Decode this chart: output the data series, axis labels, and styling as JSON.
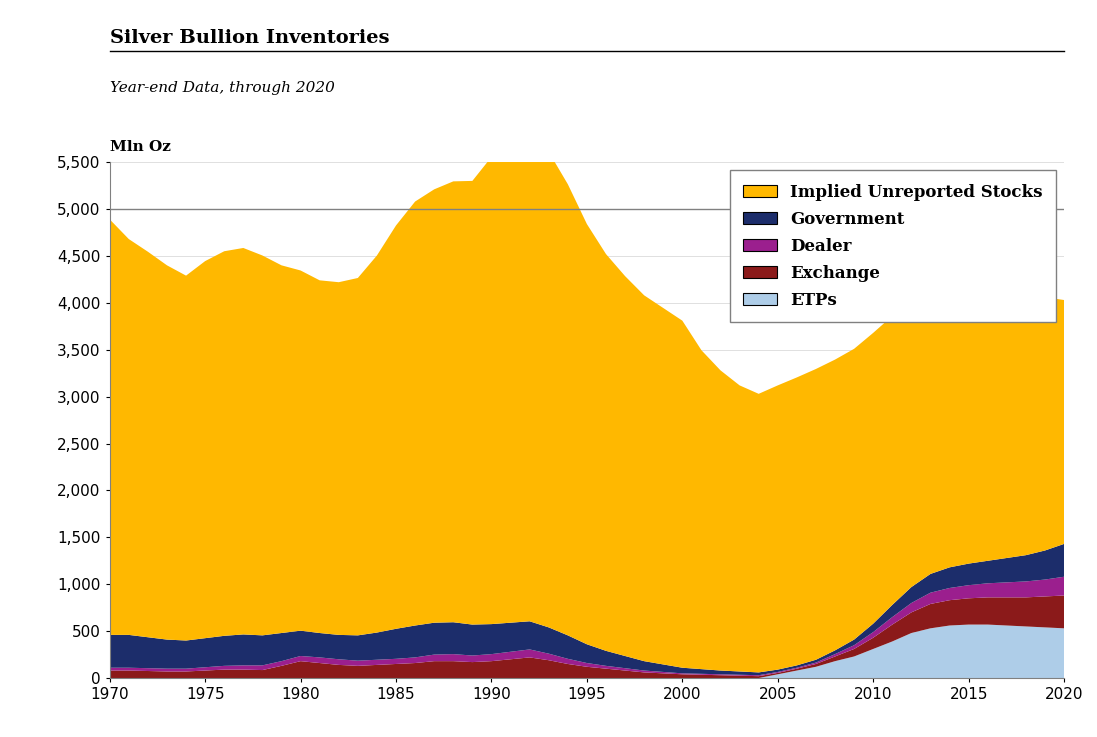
{
  "title": "Silver Bullion Inventories",
  "subtitle": "Year-end Data, through 2020",
  "ylabel": "Mln Oz",
  "years": [
    1970,
    1971,
    1972,
    1973,
    1974,
    1975,
    1976,
    1977,
    1978,
    1979,
    1980,
    1981,
    1982,
    1983,
    1984,
    1985,
    1986,
    1987,
    1988,
    1989,
    1990,
    1991,
    1992,
    1993,
    1994,
    1995,
    1996,
    1997,
    1998,
    1999,
    2000,
    2001,
    2002,
    2003,
    2004,
    2005,
    2006,
    2007,
    2008,
    2009,
    2010,
    2011,
    2012,
    2013,
    2014,
    2015,
    2016,
    2017,
    2018,
    2019,
    2020
  ],
  "etps": [
    0,
    0,
    0,
    0,
    0,
    0,
    0,
    0,
    0,
    0,
    0,
    0,
    0,
    0,
    0,
    0,
    0,
    0,
    0,
    0,
    0,
    0,
    0,
    0,
    0,
    0,
    0,
    0,
    0,
    0,
    0,
    0,
    0,
    0,
    0,
    40,
    80,
    120,
    180,
    230,
    310,
    390,
    480,
    530,
    560,
    570,
    570,
    560,
    550,
    540,
    530
  ],
  "exchange": [
    80,
    80,
    75,
    70,
    70,
    80,
    90,
    90,
    85,
    130,
    180,
    160,
    140,
    130,
    140,
    150,
    160,
    180,
    180,
    170,
    180,
    200,
    220,
    190,
    150,
    120,
    100,
    80,
    60,
    50,
    40,
    35,
    30,
    25,
    20,
    15,
    20,
    30,
    50,
    80,
    120,
    180,
    220,
    260,
    270,
    280,
    290,
    300,
    310,
    330,
    350
  ],
  "dealer": [
    30,
    30,
    30,
    30,
    30,
    35,
    40,
    45,
    50,
    50,
    55,
    60,
    60,
    55,
    55,
    55,
    60,
    70,
    75,
    70,
    75,
    80,
    85,
    70,
    55,
    40,
    30,
    25,
    20,
    15,
    10,
    10,
    10,
    10,
    10,
    10,
    10,
    15,
    25,
    40,
    60,
    80,
    100,
    120,
    130,
    140,
    150,
    160,
    170,
    180,
    200
  ],
  "government": [
    350,
    350,
    330,
    310,
    300,
    310,
    320,
    330,
    320,
    300,
    270,
    260,
    260,
    270,
    290,
    320,
    340,
    340,
    340,
    330,
    320,
    310,
    300,
    280,
    250,
    200,
    160,
    130,
    100,
    80,
    60,
    50,
    40,
    35,
    30,
    25,
    25,
    30,
    40,
    60,
    90,
    130,
    170,
    200,
    220,
    230,
    240,
    260,
    280,
    310,
    350
  ],
  "implied": [
    4430,
    4220,
    4110,
    3990,
    3890,
    4020,
    4100,
    4120,
    4050,
    3920,
    3840,
    3760,
    3760,
    3810,
    4020,
    4300,
    4520,
    4620,
    4700,
    4730,
    4980,
    5080,
    5150,
    5070,
    4810,
    4480,
    4230,
    4050,
    3900,
    3800,
    3700,
    3400,
    3200,
    3050,
    2970,
    3030,
    3070,
    3100,
    3100,
    3100,
    3100,
    3080,
    3000,
    2900,
    2830,
    2820,
    2820,
    2800,
    2780,
    2700,
    2600
  ],
  "colors": {
    "etps": "#AECDE8",
    "exchange": "#8B1A1A",
    "dealer": "#9B1F8E",
    "government": "#1C2D6B",
    "implied": "#FFB800"
  },
  "legend_labels": [
    "Implied Unreported Stocks",
    "Government",
    "Dealer",
    "Exchange",
    "ETPs"
  ],
  "legend_colors": [
    "#FFB800",
    "#1C2D6B",
    "#9B1F8E",
    "#8B1A1A",
    "#AECDE8"
  ],
  "xlim": [
    1970,
    2020
  ],
  "ylim": [
    0,
    5500
  ],
  "yticks": [
    0,
    500,
    1000,
    1500,
    2000,
    2500,
    3000,
    3500,
    4000,
    4500,
    5000,
    5500
  ],
  "xticks": [
    1970,
    1975,
    1980,
    1985,
    1990,
    1995,
    2000,
    2005,
    2010,
    2015,
    2020
  ],
  "hline_y": 5000,
  "title_fontsize": 14,
  "subtitle_fontsize": 11,
  "tick_fontsize": 11,
  "legend_fontsize": 12
}
